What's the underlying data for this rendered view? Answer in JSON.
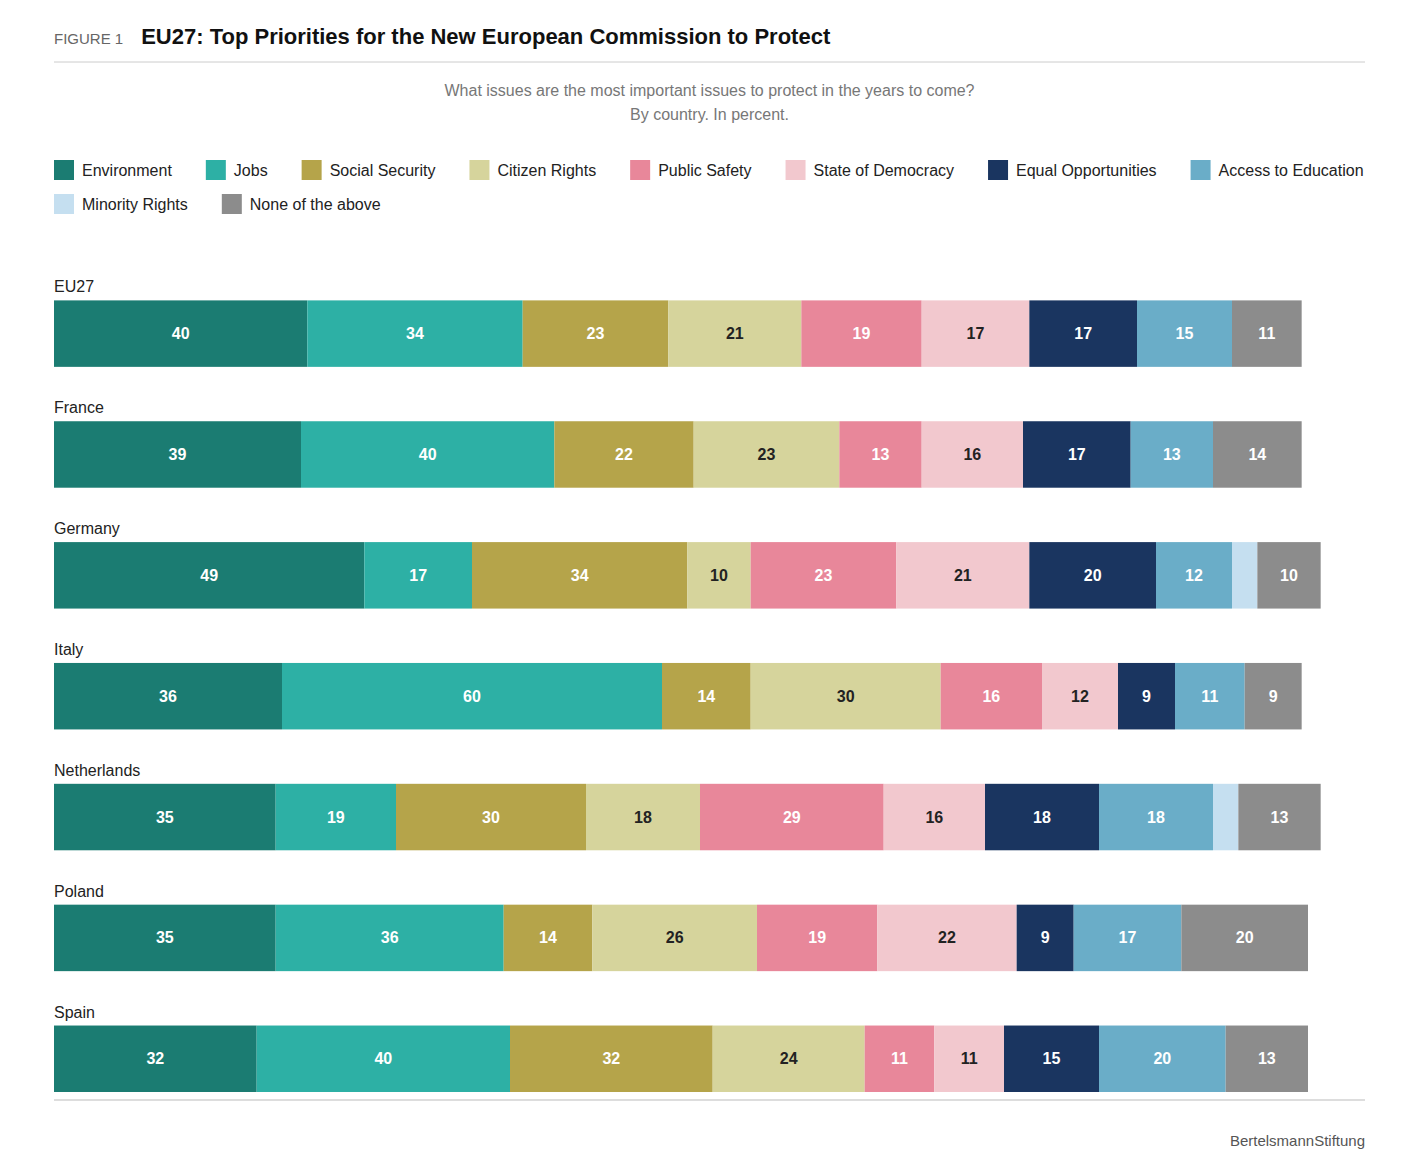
{
  "chart_data": {
    "type": "bar",
    "orientation": "horizontal",
    "stacked": true,
    "data_labels": true,
    "tick_labels": false,
    "grid": false,
    "legend": "top",
    "title": "EU27: Top Priorities for the New European Commission to Protect",
    "subtitle": "What issues are the most important issues to protect in the years to come?\nBy country. In percent.",
    "annotations": [
      "FIGURE 1",
      "BertelsmannStiftung"
    ],
    "categories": [
      "EU27",
      "France",
      "Germany",
      "Italy",
      "Netherlands",
      "Poland",
      "Spain"
    ],
    "xlim": [
      0,
      207
    ],
    "series": [
      {
        "name": "Environment",
        "color": "#1b7c72",
        "values": [
          40,
          39,
          49,
          36,
          35,
          35,
          32
        ]
      },
      {
        "name": "Jobs",
        "color": "#2db0a5",
        "values": [
          34,
          40,
          17,
          60,
          19,
          36,
          40
        ]
      },
      {
        "name": "Social Security",
        "color": "#b5a44a",
        "values": [
          23,
          22,
          34,
          14,
          30,
          14,
          32
        ]
      },
      {
        "name": "Citizen Rights",
        "color": "#d6d49c",
        "values": [
          21,
          23,
          10,
          30,
          18,
          26,
          24
        ]
      },
      {
        "name": "Public Safety",
        "color": "#e8879a",
        "values": [
          19,
          13,
          23,
          16,
          29,
          19,
          11
        ]
      },
      {
        "name": "State of Democracy",
        "color": "#f2c8ce",
        "values": [
          17,
          16,
          21,
          12,
          16,
          22,
          11
        ]
      },
      {
        "name": "Equal Opportunities",
        "color": "#1a3560",
        "values": [
          17,
          17,
          20,
          9,
          18,
          9,
          15
        ]
      },
      {
        "name": "Access to Education",
        "color": "#6aadc8",
        "values": [
          15,
          13,
          12,
          11,
          18,
          17,
          20
        ]
      },
      {
        "name": "Minority Rights",
        "color": "#c5dff0",
        "values": [
          0,
          0,
          4,
          0,
          4,
          0,
          0
        ],
        "value_labels": [
          null,
          null,
          null,
          null,
          null,
          null,
          null
        ]
      },
      {
        "name": "None of the above",
        "color": "#8c8c8c",
        "values": [
          11,
          14,
          10,
          9,
          13,
          20,
          13
        ]
      }
    ]
  }
}
